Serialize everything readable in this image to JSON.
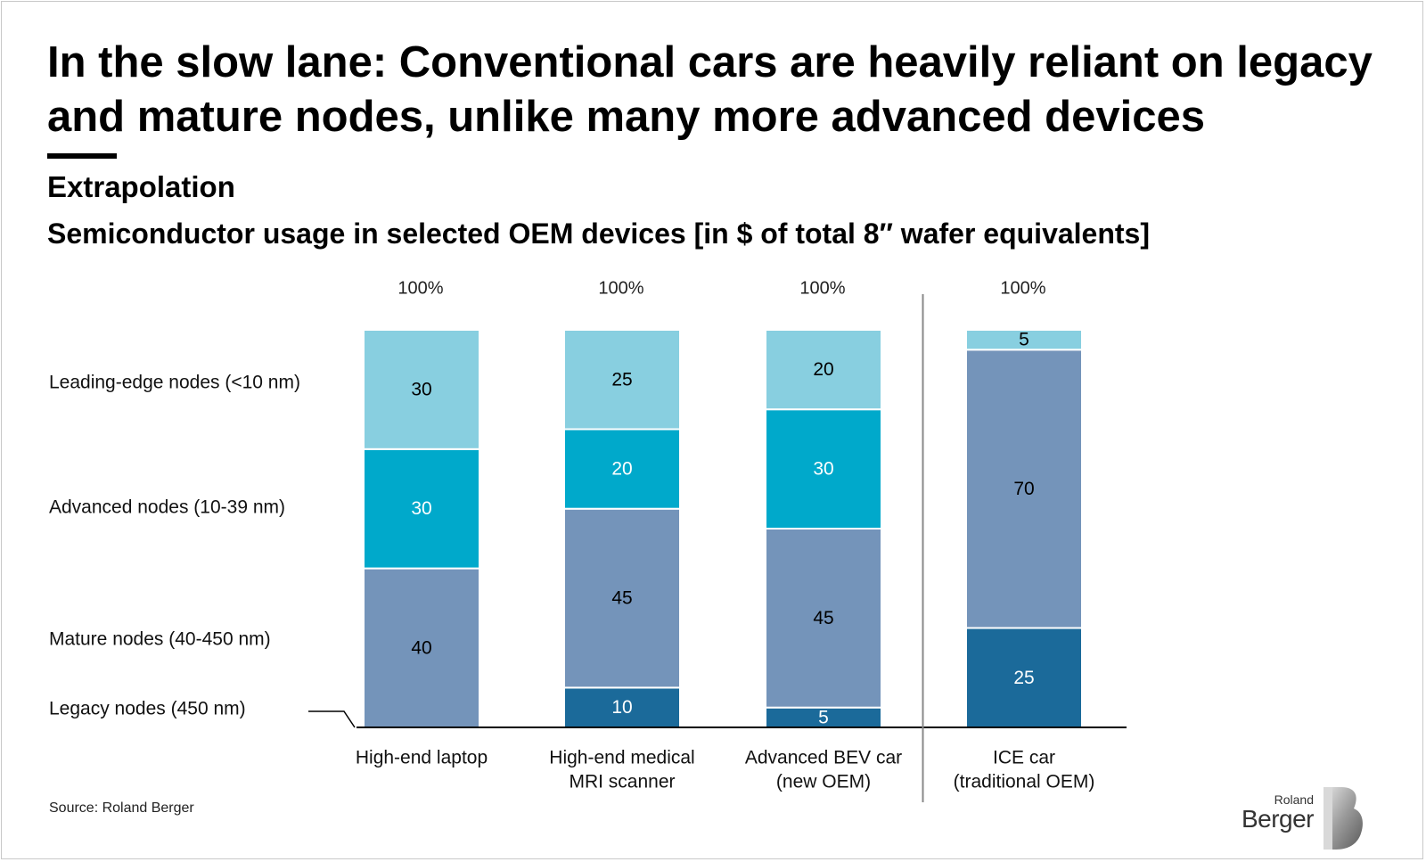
{
  "title": "In the slow lane: Conventional cars are heavily reliant on legacy and mature nodes, unlike many more advanced devices",
  "subtitle": "Extrapolation",
  "source": "Source: Roland Berger",
  "logo": {
    "line1": "Roland",
    "line2": "Berger"
  },
  "chart_data": {
    "type": "bar",
    "stacked": true,
    "title": "Semiconductor usage in selected OEM devices [in $ of total 8″ wafer equivalents]",
    "categories": [
      "High-end laptop",
      "High-end medical MRI scanner",
      "Advanced BEV car (new OEM)",
      "ICE car (traditional OEM)"
    ],
    "category_lines": [
      [
        "High-end laptop"
      ],
      [
        "High-end medical",
        "MRI scanner"
      ],
      [
        "Advanced BEV car",
        "(new OEM)"
      ],
      [
        "ICE car",
        "(traditional OEM)"
      ]
    ],
    "totals": [
      "100%",
      "100%",
      "100%",
      "100%"
    ],
    "series": [
      {
        "name": "Legacy nodes (450 nm)",
        "values": [
          0,
          10,
          5,
          25
        ],
        "color": "#1b6a9a",
        "label_color": "#ffffff"
      },
      {
        "name": "Mature nodes (40-450 nm)",
        "values": [
          40,
          45,
          45,
          70
        ],
        "color": "#7494ba",
        "label_color": "#000000"
      },
      {
        "name": "Advanced nodes (10-39 nm)",
        "values": [
          30,
          20,
          30,
          0
        ],
        "color": "#00a9cb",
        "label_color": "#ffffff"
      },
      {
        "name": "Leading-edge nodes (<10 nm)",
        "values": [
          30,
          25,
          20,
          5
        ],
        "color": "#88cfe0",
        "label_color": "#000000"
      }
    ],
    "ylim": [
      0,
      100
    ],
    "legend_position": "left",
    "separator_after_category": 2
  }
}
